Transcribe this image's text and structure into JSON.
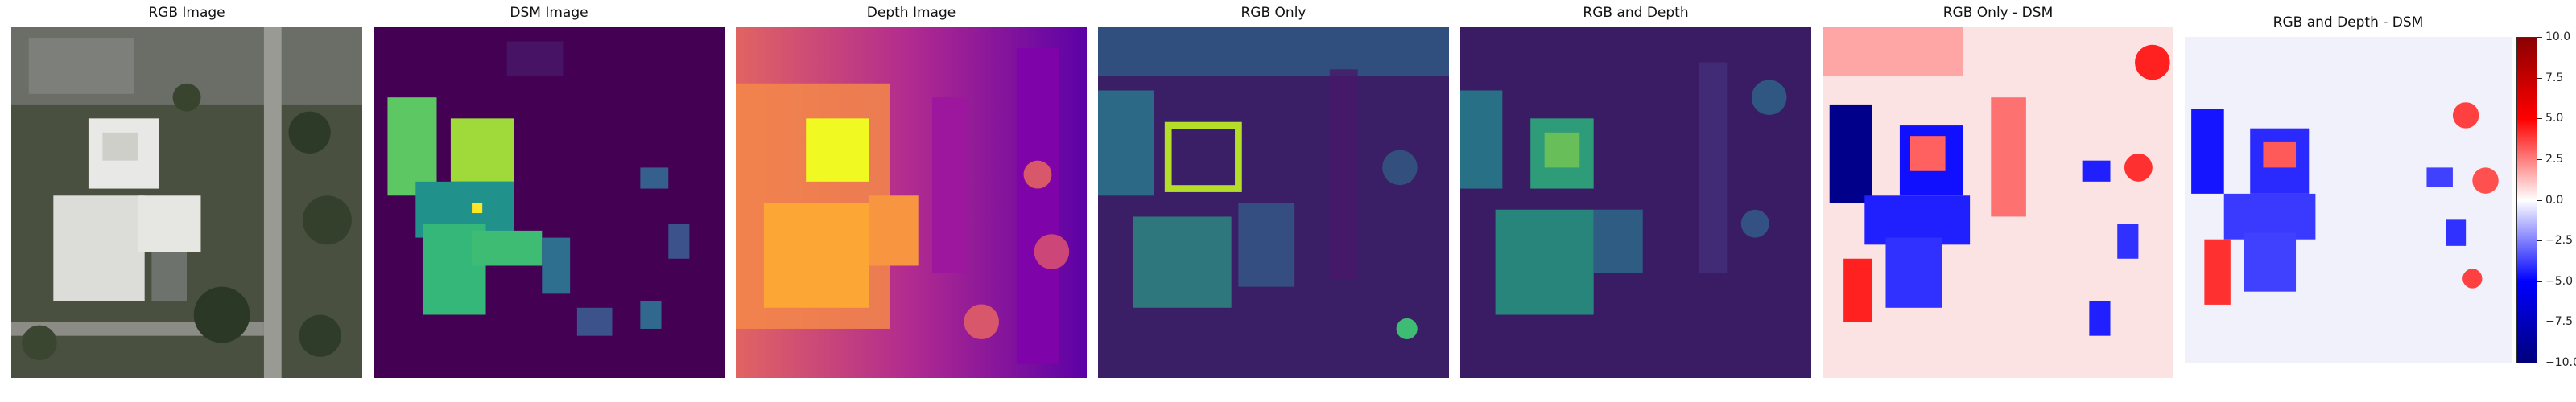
{
  "panels": [
    {
      "title": "RGB Image"
    },
    {
      "title": "DSM Image"
    },
    {
      "title": "Depth Image"
    },
    {
      "title": "RGB Only"
    },
    {
      "title": "RGB and Depth"
    },
    {
      "title": "RGB Only - DSM"
    },
    {
      "title": "RGB and Depth - DSM"
    }
  ],
  "colorbar": {
    "ticks": [
      "10.0",
      "7.5",
      "5.0",
      "2.5",
      "0.0",
      "−2.5",
      "−5.0",
      "−7.5",
      "−10.0"
    ],
    "range": [
      -10,
      10
    ],
    "colormap": "seismic"
  }
}
